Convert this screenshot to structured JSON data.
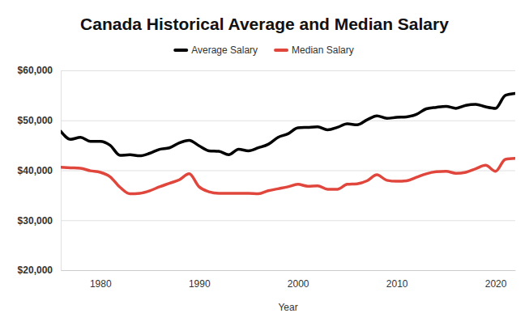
{
  "chart_data": {
    "type": "line",
    "title": "Canada Historical Average and Median Salary",
    "x_label": "Year",
    "x": [
      1976,
      1977,
      1978,
      1979,
      1980,
      1981,
      1982,
      1983,
      1984,
      1985,
      1986,
      1987,
      1988,
      1989,
      1990,
      1991,
      1992,
      1993,
      1994,
      1995,
      1996,
      1997,
      1998,
      1999,
      2000,
      2001,
      2002,
      2003,
      2004,
      2005,
      2006,
      2007,
      2008,
      2009,
      2010,
      2011,
      2012,
      2013,
      2014,
      2015,
      2016,
      2017,
      2018,
      2019,
      2020,
      2021,
      2022
    ],
    "series": [
      {
        "name": "Average Salary",
        "color": "#000000",
        "values": [
          47800,
          46200,
          46600,
          45800,
          45800,
          45000,
          43000,
          43100,
          42900,
          43400,
          44200,
          44500,
          45500,
          46000,
          44900,
          43900,
          43800,
          43100,
          44200,
          43900,
          44500,
          45200,
          46600,
          47300,
          48500,
          48600,
          48700,
          48100,
          48600,
          49300,
          49100,
          50100,
          50900,
          50400,
          50600,
          50700,
          51200,
          52300,
          52600,
          52800,
          52400,
          53000,
          53200,
          52700,
          52400,
          55000,
          55400
        ]
      },
      {
        "name": "Median Salary",
        "color": "#e0463c",
        "values": [
          40600,
          40500,
          40400,
          39900,
          39600,
          38700,
          36600,
          35300,
          35400,
          35900,
          36700,
          37400,
          38100,
          39300,
          36700,
          35700,
          35400,
          35400,
          35400,
          35400,
          35300,
          35900,
          36300,
          36700,
          37200,
          36800,
          36900,
          36200,
          36200,
          37200,
          37300,
          37900,
          39100,
          38000,
          37800,
          37900,
          38600,
          39300,
          39700,
          39800,
          39400,
          39600,
          40300,
          41000,
          39800,
          42200,
          42400
        ]
      }
    ],
    "xlim": [
      1976,
      2022
    ],
    "xticks": [
      1980,
      1990,
      2000,
      2010,
      2020
    ],
    "ylim": [
      20000,
      60000
    ],
    "yticks": [
      {
        "value": 20000,
        "label": "$20,000"
      },
      {
        "value": 30000,
        "label": "$30,000"
      },
      {
        "value": 40000,
        "label": "$40,000"
      },
      {
        "value": 50000,
        "label": "$50,000"
      },
      {
        "value": 60000,
        "label": "$60,000"
      }
    ],
    "grid": true,
    "legend": "top"
  }
}
